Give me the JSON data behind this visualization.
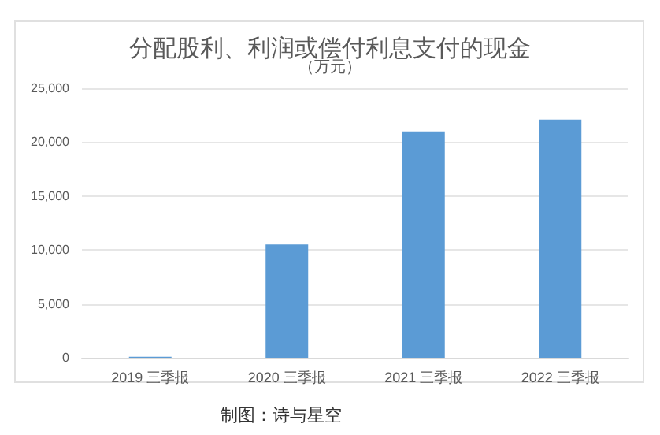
{
  "chart_data": {
    "type": "bar",
    "title": "分配股利、利润或偿付利息支付的现金",
    "subtitle": "（万元）",
    "categories": [
      "2019 三季报",
      "2020 三季报",
      "2021 三季报",
      "2022 三季报"
    ],
    "values": [
      100,
      10500,
      21000,
      22100
    ],
    "color": "#5b9bd5",
    "ylim": [
      0,
      25000
    ],
    "yticks": [
      {
        "value": 0,
        "label": "0"
      },
      {
        "value": 5000,
        "label": "5,000"
      },
      {
        "value": 10000,
        "label": "10,000"
      },
      {
        "value": 15000,
        "label": "15,000"
      },
      {
        "value": 20000,
        "label": "20,000"
      },
      {
        "value": 25000,
        "label": "25,000"
      }
    ],
    "grid": true,
    "annotations": [
      "制图：诗与星空"
    ]
  }
}
